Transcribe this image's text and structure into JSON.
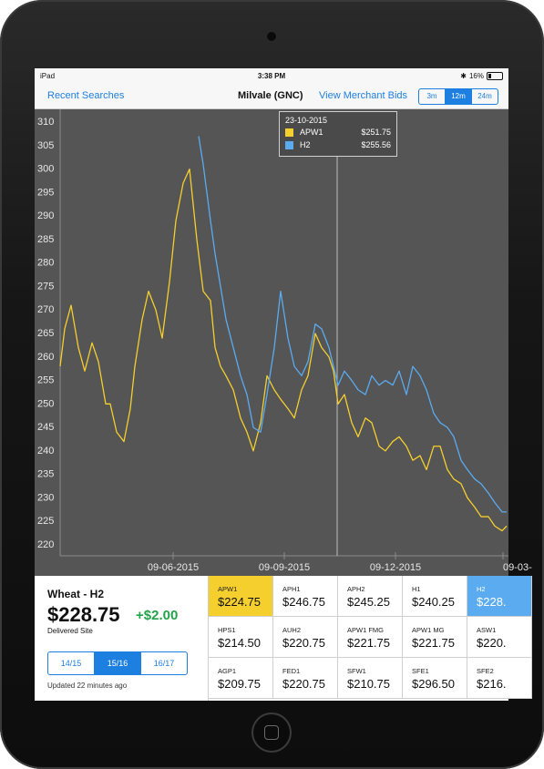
{
  "status": {
    "device": "iPad",
    "time": "3:38 PM",
    "battery": "16%"
  },
  "nav": {
    "back": "Recent Searches",
    "title": "Milvale (GNC)",
    "merchant": "View Merchant Bids",
    "ranges": [
      "3m",
      "12m",
      "24m"
    ],
    "active_range": "12m"
  },
  "tooltip": {
    "date": "23-10-2015",
    "rows": [
      {
        "name": "APW1",
        "value": "$251.75",
        "color": "#f5cf2d"
      },
      {
        "name": "H2",
        "value": "$255.56",
        "color": "#5aabef"
      }
    ]
  },
  "chart_data": {
    "type": "line",
    "ylim": [
      220,
      310
    ],
    "y_ticks": [
      310,
      305,
      300,
      295,
      290,
      285,
      280,
      275,
      270,
      265,
      260,
      255,
      250,
      245,
      240,
      235,
      230,
      225,
      220
    ],
    "x_ticks": [
      "09-06-2015",
      "09-09-2015",
      "09-12-2015",
      "09-03-"
    ],
    "background": "#555555",
    "series": [
      {
        "name": "APW1",
        "color": "#f5cf2d",
        "x": [
          0,
          5,
          12,
          20,
          27,
          35,
          42,
          50,
          55,
          62,
          70,
          77,
          82,
          90,
          97,
          105,
          112,
          120,
          127,
          135,
          142,
          150,
          157,
          165,
          170,
          176,
          182,
          190,
          198,
          205,
          212,
          220,
          227,
          235,
          242,
          250,
          257,
          265,
          272,
          280,
          287,
          295,
          300,
          305,
          312,
          320,
          327,
          335,
          342,
          350,
          357,
          365,
          372,
          380,
          387,
          395,
          402,
          410,
          417,
          425,
          432,
          440,
          447,
          455,
          462,
          470,
          477,
          485,
          490
        ],
        "y": [
          258,
          266,
          271,
          262,
          257,
          263,
          259,
          250,
          250,
          244,
          242,
          249,
          258,
          268,
          274,
          270,
          264,
          276,
          289,
          297,
          300,
          285,
          274,
          272,
          262,
          258,
          256,
          253,
          247,
          244,
          240,
          246,
          256,
          253,
          251,
          249,
          247,
          253,
          256,
          265,
          262,
          260,
          257,
          250,
          252,
          246,
          243,
          247,
          246,
          241,
          240,
          242,
          243,
          241,
          238,
          239,
          236,
          241,
          241,
          236,
          234,
          233,
          230,
          228,
          226,
          226,
          224,
          223,
          224
        ]
      },
      {
        "name": "H2",
        "color": "#5aabef",
        "x": [
          152,
          157,
          165,
          170,
          176,
          182,
          190,
          198,
          205,
          212,
          220,
          227,
          235,
          242,
          250,
          257,
          265,
          272,
          280,
          287,
          295,
          300,
          305,
          312,
          320,
          327,
          335,
          342,
          350,
          357,
          365,
          372,
          380,
          387,
          395,
          402,
          410,
          417,
          425,
          432,
          440,
          447,
          455,
          462,
          470,
          477,
          485,
          490
        ],
        "y": [
          307,
          301,
          289,
          282,
          275,
          268,
          262,
          256,
          252,
          245,
          244,
          252,
          262,
          274,
          264,
          258,
          256,
          259,
          267,
          266,
          262,
          258,
          254,
          257,
          255,
          253,
          252,
          256,
          254,
          255,
          254,
          257,
          252,
          258,
          256,
          253,
          248,
          246,
          245,
          243,
          238,
          236,
          234,
          233,
          231,
          229,
          227,
          227
        ]
      }
    ]
  },
  "info": {
    "grade": "Wheat - H2",
    "price": "$228.75",
    "change": "+$2.00",
    "site": "Delivered Site",
    "seasons": [
      "14/15",
      "15/16",
      "16/17"
    ],
    "active_season": "15/16",
    "updated": "Updated 22 minutes ago"
  },
  "grades": [
    {
      "code": "APW1",
      "price": "$224.75",
      "selected": "yellow"
    },
    {
      "code": "APH1",
      "price": "$246.75",
      "selected": ""
    },
    {
      "code": "APH2",
      "price": "$245.25",
      "selected": ""
    },
    {
      "code": "H1",
      "price": "$240.25",
      "selected": ""
    },
    {
      "code": "H2",
      "price": "$228.",
      "selected": "blue"
    },
    {
      "code": "HPS1",
      "price": "$214.50",
      "selected": ""
    },
    {
      "code": "AUH2",
      "price": "$220.75",
      "selected": ""
    },
    {
      "code": "APW1 FMG",
      "price": "$221.75",
      "selected": ""
    },
    {
      "code": "APW1 MG",
      "price": "$221.75",
      "selected": ""
    },
    {
      "code": "ASW1",
      "price": "$220.",
      "selected": ""
    },
    {
      "code": "AGP1",
      "price": "$209.75",
      "selected": ""
    },
    {
      "code": "FED1",
      "price": "$220.75",
      "selected": ""
    },
    {
      "code": "SFW1",
      "price": "$210.75",
      "selected": ""
    },
    {
      "code": "SFE1",
      "price": "$296.50",
      "selected": ""
    },
    {
      "code": "SFE2",
      "price": "$216.",
      "selected": ""
    }
  ]
}
